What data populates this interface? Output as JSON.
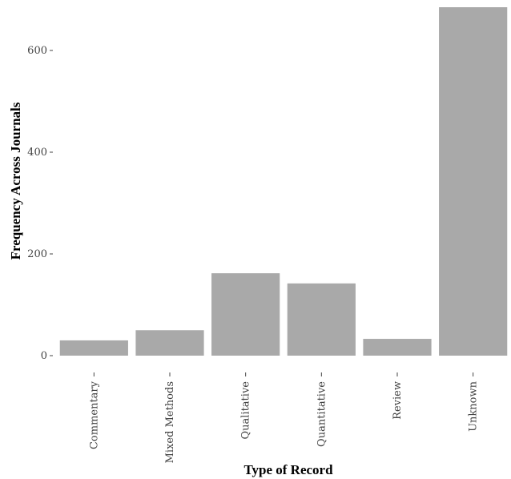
{
  "chart_data": {
    "type": "bar",
    "title": "",
    "xlabel": "Type of Record",
    "ylabel": "Frequency Across Journals",
    "categories": [
      "Commentary",
      "Mixed Methods",
      "Qualitative",
      "Quantitative",
      "Review",
      "Unknown"
    ],
    "values": [
      30,
      50,
      162,
      142,
      33,
      685
    ],
    "ylim": [
      0,
      690
    ],
    "yticks": [
      0,
      200,
      400,
      600
    ],
    "grid": false,
    "legend": "none",
    "bar_color": "#a9a9a9"
  }
}
